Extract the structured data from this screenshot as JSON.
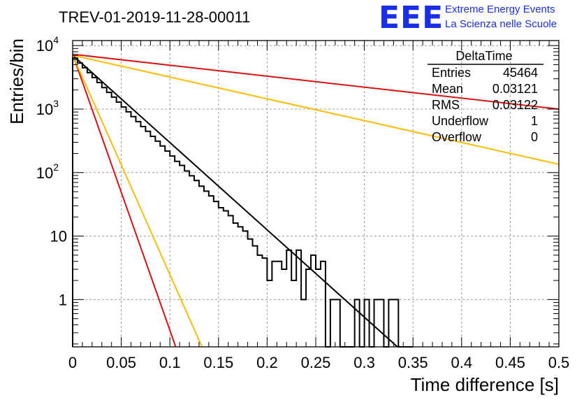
{
  "title": "TREV-01-2019-11-28-00011",
  "logo": {
    "mark": "EEE",
    "line1": "Extreme Energy Events",
    "line2": "La Scienza nelle Scuole",
    "color": "#1a2ee6"
  },
  "stats_box": {
    "name": "DeltaTime",
    "rows": [
      {
        "label": "Entries",
        "value": "45464"
      },
      {
        "label": "Mean",
        "value": "0.03121"
      },
      {
        "label": "RMS",
        "value": "0.03122"
      },
      {
        "label": "Underflow",
        "value": "1"
      },
      {
        "label": "Overflow",
        "value": "0"
      }
    ]
  },
  "chart_data": {
    "type": "line",
    "xlabel": "Time difference [s]",
    "ylabel": "Entries/bin",
    "xlim": [
      0,
      0.5
    ],
    "ylim": [
      0.18,
      12000
    ],
    "y_scale": "log",
    "grid": true,
    "x_ticks": [
      "0",
      "0.05",
      "0.1",
      "0.15",
      "0.2",
      "0.25",
      "0.3",
      "0.35",
      "0.4",
      "0.45",
      "0.5"
    ],
    "y_ticks": [
      {
        "base": "10",
        "exp": "4"
      },
      {
        "base": "10",
        "exp": "3"
      },
      {
        "base": "10",
        "exp": "2"
      },
      {
        "base": "10",
        "exp": ""
      },
      {
        "base": "1",
        "exp": ""
      }
    ],
    "histogram": {
      "bin_width": 0.005,
      "color": "#000000",
      "counts": [
        6350,
        5320,
        4480,
        3750,
        3140,
        2620,
        2180,
        1830,
        1545,
        1290,
        1080,
        905,
        760,
        635,
        530,
        447,
        372,
        312,
        262,
        218,
        182,
        150,
        130,
        106,
        89,
        75,
        61,
        51,
        43,
        35,
        28,
        25,
        21,
        16,
        14,
        12,
        9,
        7,
        5,
        4.5,
        2,
        4,
        4,
        3,
        6,
        2,
        6,
        1,
        3,
        5,
        3,
        4,
        0,
        1,
        1,
        0,
        0,
        0,
        1,
        0,
        1,
        0,
        1,
        1,
        0,
        1,
        1,
        0,
        0,
        0
      ]
    },
    "series": [
      {
        "color": "#000000",
        "x": [
          0,
          0.334
        ],
        "y": [
          7050,
          0.18
        ]
      },
      {
        "color": "#dd1111",
        "x": [
          0,
          0.5
        ],
        "y": [
          7300,
          1000
        ]
      },
      {
        "color": "#ffbb00",
        "x": [
          0,
          0.5
        ],
        "y": [
          7050,
          135
        ]
      },
      {
        "color": "#dd1111",
        "x": [
          0,
          0.106
        ],
        "y": [
          7300,
          0.18
        ]
      },
      {
        "color": "#ffbb00",
        "x": [
          0,
          0.133
        ],
        "y": [
          7050,
          0.18
        ]
      }
    ]
  }
}
